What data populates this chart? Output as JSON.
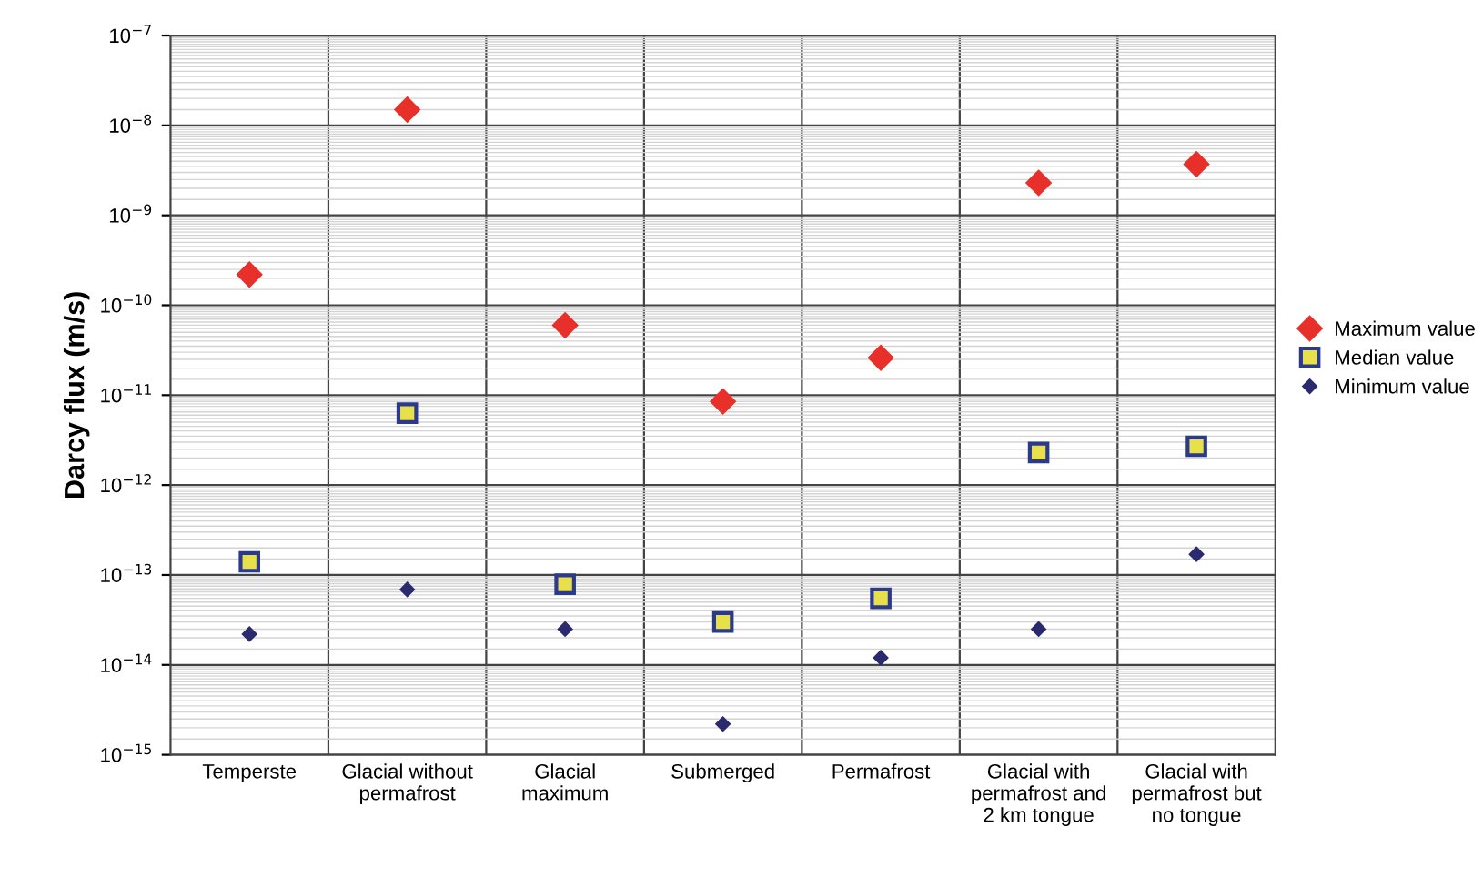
{
  "chart_data": {
    "type": "scatter",
    "ylabel": "Darcy flux (m/s)",
    "categories": [
      "Temperste",
      "Glacial without\npermafrost",
      "Glacial\nmaximum",
      "Submerged",
      "Permafrost",
      "Glacial with\npermafrost and\n2 km tongue",
      "Glacial with\npermafrost but\nno tongue"
    ],
    "series": [
      {
        "name": "Maximum value",
        "color": "#e8302a",
        "marker": "diamond",
        "values": [
          2.2e-10,
          1.5e-08,
          6e-11,
          8.5e-12,
          2.6e-11,
          2.3e-09,
          3.7e-09
        ]
      },
      {
        "name": "Median value",
        "color": "#e8e04a",
        "marker": "square",
        "values": [
          1.4e-13,
          6.3e-12,
          7.9e-14,
          3e-14,
          5.5e-14,
          2.3e-12,
          2.7e-12
        ]
      },
      {
        "name": "Minimum value",
        "color": "#2b2a6e",
        "marker": "diamond",
        "values": [
          2.2e-14,
          6.9e-14,
          2.5e-14,
          2.2e-15,
          1.2e-14,
          2.5e-14,
          1.7e-13
        ]
      }
    ],
    "log": true,
    "ylim": [
      1e-15,
      1e-07
    ],
    "yticks": [
      {
        "value": 1e-15,
        "label": "10$^{−15}$"
      },
      {
        "value": 1e-14,
        "label": "10$^{−14}$"
      },
      {
        "value": 1e-13,
        "label": "10$^{−13}$"
      },
      {
        "value": 1e-12,
        "label": "10$^{−12}$"
      },
      {
        "value": 1e-11,
        "label": "10$^{−11}$"
      },
      {
        "value": 1e-10,
        "label": "10$^{−10}$"
      },
      {
        "value": 1e-09,
        "label": "10$^{−9}$"
      },
      {
        "value": 1e-08,
        "label": "10$^{−8}$"
      },
      {
        "value": 1e-07,
        "label": "10$^{−7}$"
      }
    ],
    "grid": true,
    "legend": "right"
  }
}
